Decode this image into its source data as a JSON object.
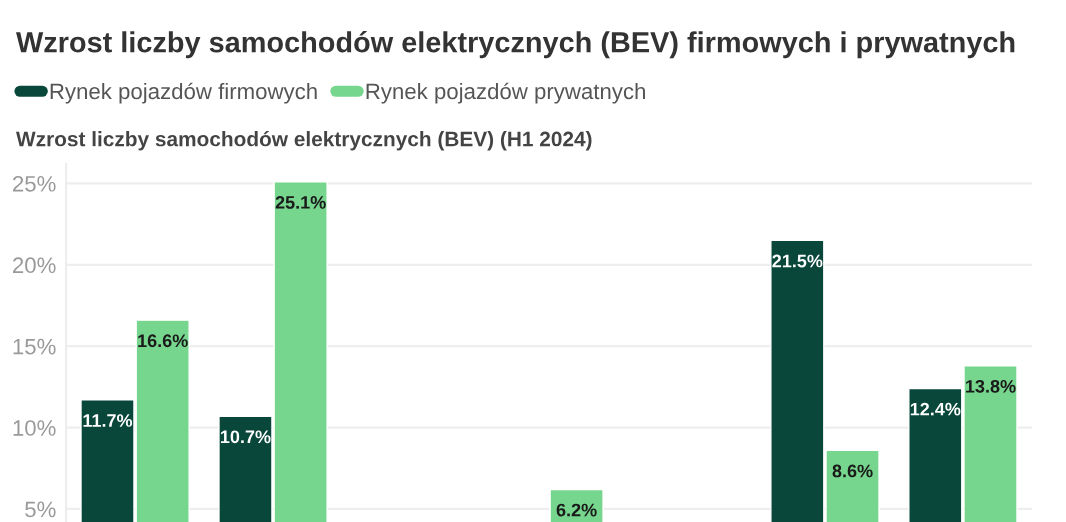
{
  "chart_data": {
    "type": "bar",
    "title": "Wzrost liczby samochodów elektrycznych (BEV) firmowych i prywatnych",
    "subtitle": "Wzrost liczby samochodów elektrycznych (BEV) (H1 2024)",
    "categories": [
      null,
      null,
      null,
      null,
      null,
      null,
      null
    ],
    "series": [
      {
        "name": "Rynek pojazdów firmowych",
        "color": "#08473a",
        "values": [
          11.7,
          10.7,
          null,
          null,
          null,
          21.5,
          12.4
        ],
        "value_labels": [
          "11.7%",
          "10.7%",
          null,
          null,
          null,
          "21.5%",
          "12.4%"
        ]
      },
      {
        "name": "Rynek pojazdów prywatnych",
        "color": "#76d68d",
        "values": [
          16.6,
          25.1,
          null,
          6.2,
          null,
          8.6,
          13.8
        ],
        "value_labels": [
          "16.6%",
          "25.1%",
          null,
          "6.2%",
          null,
          "8.6%",
          "13.8%"
        ]
      }
    ],
    "ylim": [
      4.2,
      26.2
    ],
    "yticks": [
      {
        "value": 5,
        "label": "5%"
      },
      {
        "value": 10,
        "label": "10%"
      },
      {
        "value": 15,
        "label": "15%"
      },
      {
        "value": 20,
        "label": "20%"
      },
      {
        "value": 25,
        "label": "25%"
      }
    ],
    "grid": "y",
    "legend": "top left"
  }
}
